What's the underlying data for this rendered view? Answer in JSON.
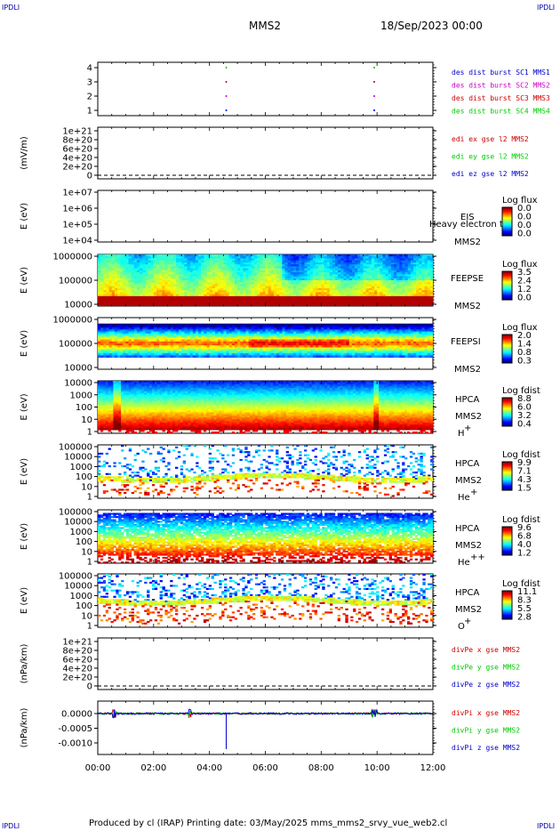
{
  "header": {
    "corner_left_top": "IPDLI",
    "corner_right_top": "IPDLI",
    "corner_left_bottom": "IPDLI",
    "corner_right_bottom": "IPDLI",
    "spacecraft": "MMS2",
    "datetime": "18/Sep/2023 00:00"
  },
  "footer": {
    "text": "Produced by cl (IRAP)   Printing date: 03/May/2025   mms_mms2_srvy_vue_web2.cl"
  },
  "colors": {
    "black": "#000000",
    "blue": "#0000cc",
    "magenta": "#cc00cc",
    "red": "#cc0000",
    "green": "#00cc00"
  },
  "chart_data": {
    "type": "multi-panel",
    "x_ticks": [
      "00:00",
      "02:00",
      "04:00",
      "06:00",
      "08:00",
      "10:00",
      "12:00"
    ],
    "x_range_hours": [
      0,
      12
    ],
    "panels": [
      {
        "id": "p1",
        "ylabel": "",
        "yticks": [
          "4",
          "3",
          "2",
          "1"
        ],
        "legend": [
          {
            "text": "des dist burst SC1 MMS1",
            "color": "#0000cc"
          },
          {
            "text": "des dist burst SC2 MMS2",
            "color": "#cc00cc"
          },
          {
            "text": "des dist burst SC3 MMS3",
            "color": "#cc0000"
          },
          {
            "text": "des dist burst SC4 MMS4",
            "color": "#00cc00"
          }
        ],
        "burst_times_hours": [
          4.6,
          9.9
        ]
      },
      {
        "id": "p2",
        "ylabel": "(mV/m)",
        "yticks": [
          "1e+21",
          "8e+20",
          "6e+20",
          "4e+20",
          "2e+20",
          "0"
        ],
        "legend": [
          {
            "text": "edi ex gse l2 MMS2",
            "color": "#cc0000"
          },
          {
            "text": "edi ey gse l2 MMS2",
            "color": "#00cc00"
          },
          {
            "text": "edi ez gse l2 MMS2",
            "color": "#0000cc"
          }
        ]
      },
      {
        "id": "p3",
        "ylabel": "E (eV)",
        "yticks": [
          "1e+07",
          "1e+06",
          "1e+05",
          "1e+04"
        ],
        "instrument": [
          "EIS",
          "MMS2"
        ],
        "overlay_text": "Heavy electron to",
        "cbar_title": "Log flux",
        "cbar_values": [
          "0.0",
          "0.0",
          "0.0",
          "0.0"
        ]
      },
      {
        "id": "p4",
        "ylabel": "E (eV)",
        "yticks": [
          "1000000",
          "100000",
          "10000"
        ],
        "instrument": [
          "FEEPSE",
          "MMS2"
        ],
        "cbar_title": "Log flux",
        "cbar_values": [
          "3.5",
          "2.4",
          "1.2",
          "0.0"
        ]
      },
      {
        "id": "p5",
        "ylabel": "E (eV)",
        "yticks": [
          "1000000",
          "100000",
          "10000"
        ],
        "instrument": [
          "FEEPSI",
          "MMS2"
        ],
        "cbar_title": "Log flux",
        "cbar_values": [
          "2.0",
          "1.4",
          "0.8",
          "0.3"
        ]
      },
      {
        "id": "p6",
        "ylabel": "E (eV)",
        "yticks": [
          "10000",
          "1000",
          "100",
          "10",
          "1"
        ],
        "instrument": [
          "HPCA",
          "MMS2",
          "H",
          "+"
        ],
        "cbar_title": "Log fdist",
        "cbar_values": [
          "8.8",
          "6.0",
          "3.2",
          "0.4"
        ]
      },
      {
        "id": "p7",
        "ylabel": "E (eV)",
        "yticks": [
          "100000",
          "10000",
          "1000",
          "100",
          "10",
          "1"
        ],
        "instrument": [
          "HPCA",
          "MMS2",
          "He",
          "+"
        ],
        "cbar_title": "Log fdist",
        "cbar_values": [
          "9.9",
          "7.1",
          "4.3",
          "1.5"
        ]
      },
      {
        "id": "p8",
        "ylabel": "E (eV)",
        "yticks": [
          "100000",
          "10000",
          "1000",
          "100",
          "10",
          "1"
        ],
        "instrument": [
          "HPCA",
          "MMS2",
          "He",
          "++"
        ],
        "cbar_title": "Log fdist",
        "cbar_values": [
          "9.6",
          "6.8",
          "4.0",
          "1.2"
        ]
      },
      {
        "id": "p9",
        "ylabel": "E (eV)",
        "yticks": [
          "100000",
          "10000",
          "1000",
          "100",
          "10",
          "1"
        ],
        "instrument": [
          "HPCA",
          "MMS2",
          "O",
          "+"
        ],
        "cbar_title": "Log fdist",
        "cbar_values": [
          "11.1",
          "8.3",
          "5.5",
          "2.8"
        ]
      },
      {
        "id": "p10",
        "ylabel": "(nPa/km)",
        "yticks": [
          "1e+21",
          "8e+20",
          "6e+20",
          "4e+20",
          "2e+20",
          "0"
        ],
        "legend": [
          {
            "text": "divPe x gse MMS2",
            "color": "#cc0000"
          },
          {
            "text": "divPe y gse MMS2",
            "color": "#00cc00"
          },
          {
            "text": "divPe z gse MMS2",
            "color": "#0000cc"
          }
        ]
      },
      {
        "id": "p11",
        "ylabel": "(nPa/km)",
        "yticks": [
          "0.0000",
          "-0.0005",
          "-0.0010"
        ],
        "legend": [
          {
            "text": "divPi x gse MMS2",
            "color": "#cc0000"
          },
          {
            "text": "divPi y gse MMS2",
            "color": "#00cc00"
          },
          {
            "text": "divPi z gse MMS2",
            "color": "#0000cc"
          }
        ]
      }
    ]
  }
}
